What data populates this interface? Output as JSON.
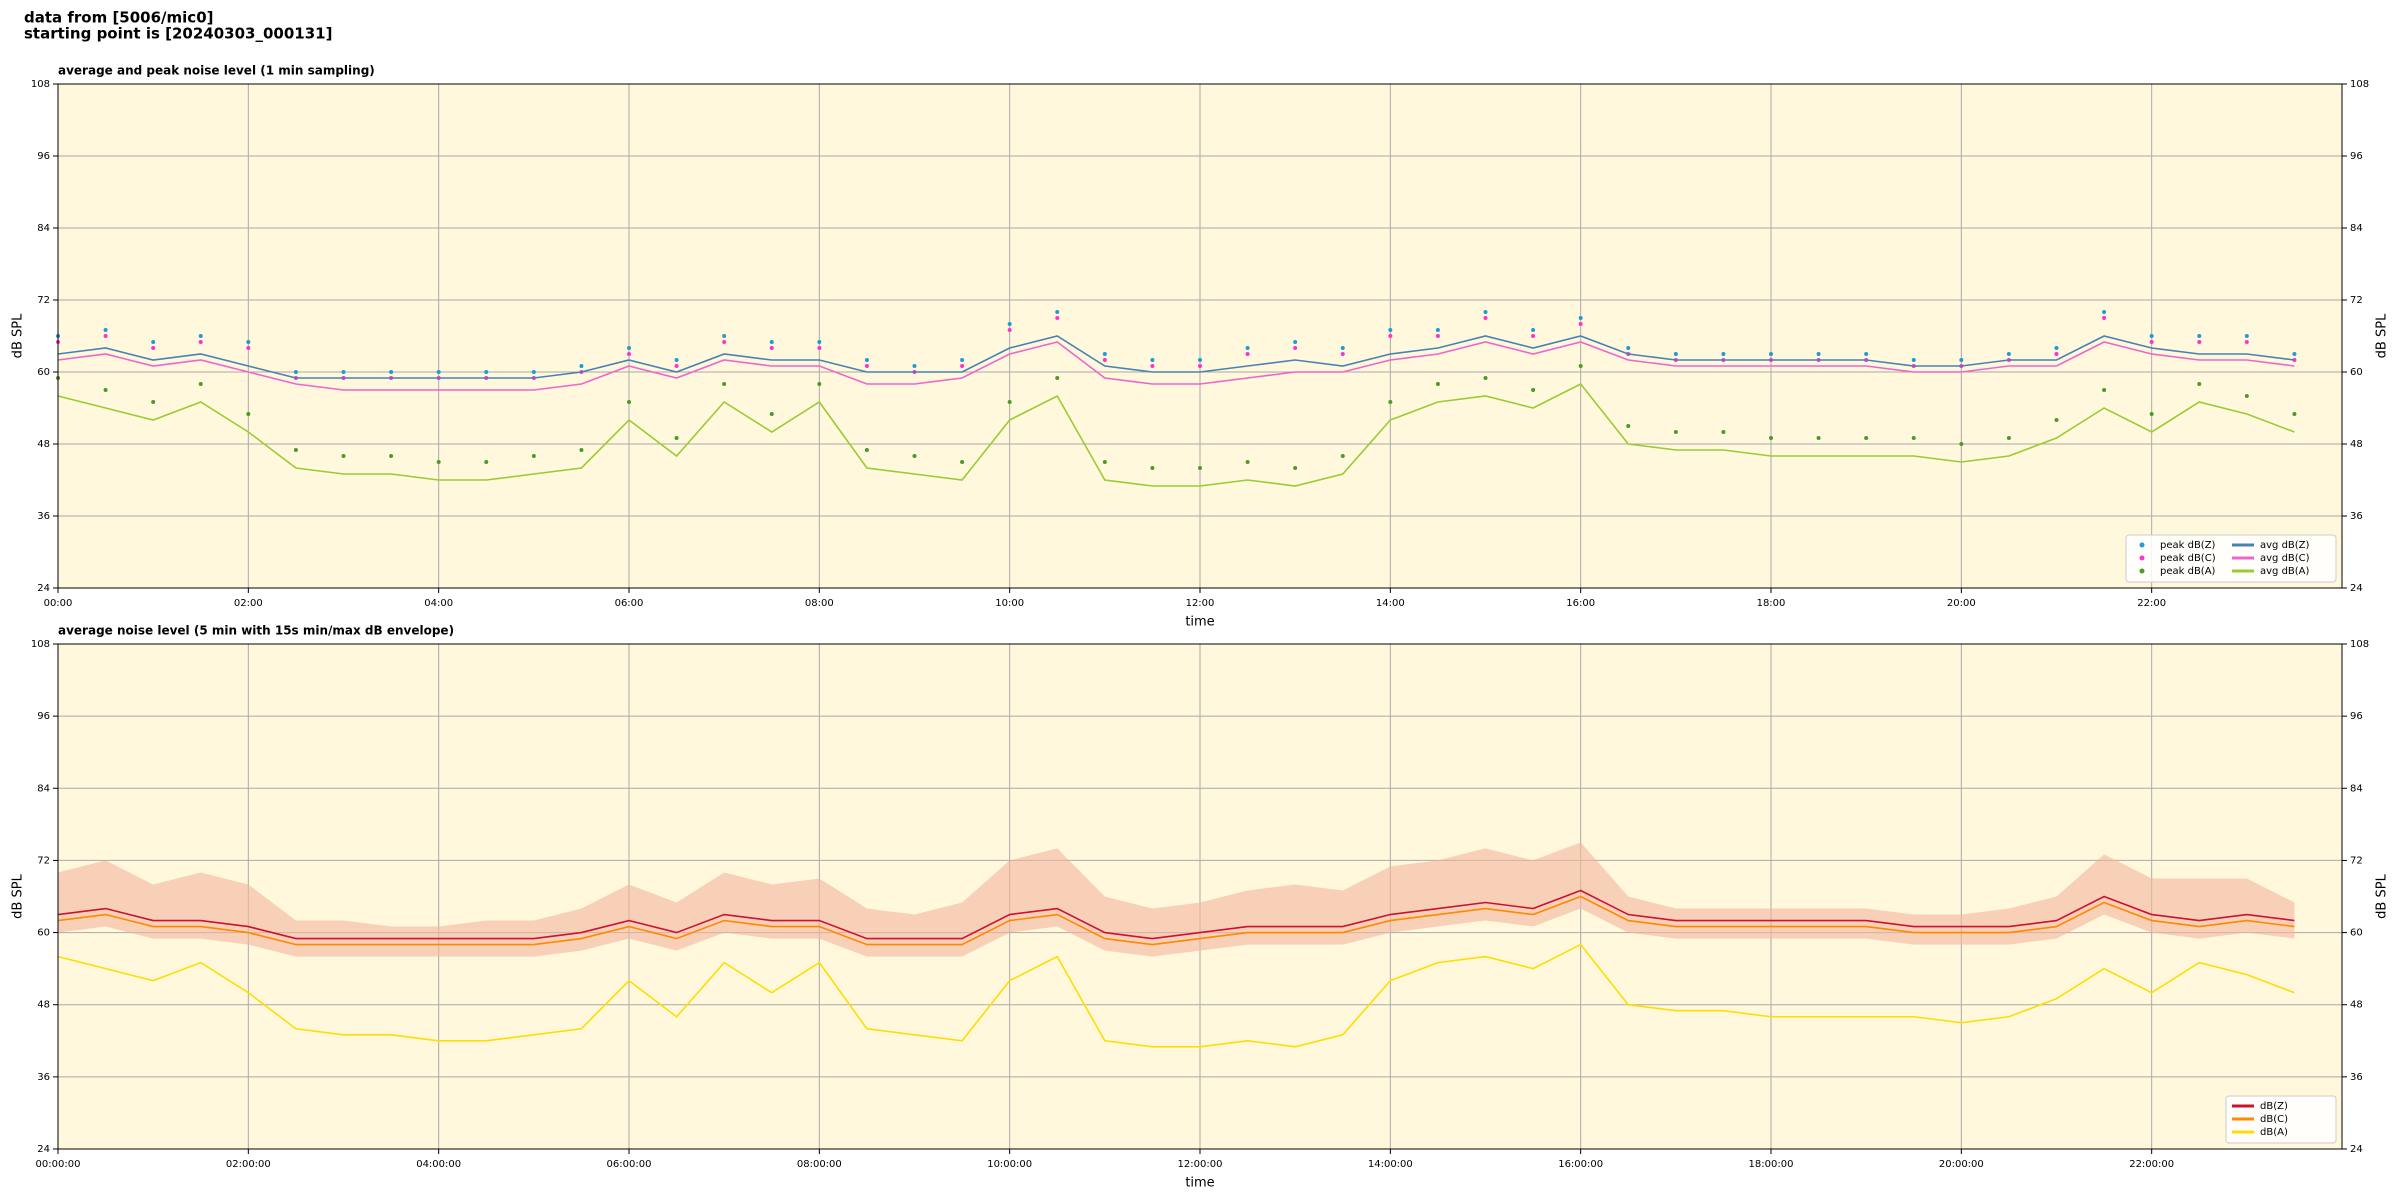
{
  "header": {
    "lines": [
      "data from [5006/mic0]",
      "starting point is [20240303_000131]"
    ]
  },
  "chart_data": [
    {
      "type": "line",
      "title": "average and peak noise level (1 min sampling)",
      "x_label": "time",
      "y_label": "dB SPL",
      "xlim": [
        0,
        24
      ],
      "xticks": [
        {
          "value": 0,
          "label": "00:00"
        },
        {
          "value": 2,
          "label": "02:00"
        },
        {
          "value": 4,
          "label": "04:00"
        },
        {
          "value": 6,
          "label": "06:00"
        },
        {
          "value": 8,
          "label": "08:00"
        },
        {
          "value": 10,
          "label": "10:00"
        },
        {
          "value": 12,
          "label": "12:00"
        },
        {
          "value": 14,
          "label": "14:00"
        },
        {
          "value": 16,
          "label": "16:00"
        },
        {
          "value": 18,
          "label": "18:00"
        },
        {
          "value": 20,
          "label": "20:00"
        },
        {
          "value": 22,
          "label": "22:00"
        }
      ],
      "ylim": [
        24,
        108
      ],
      "yticks": [
        24,
        36,
        48,
        60,
        72,
        84,
        96,
        108
      ],
      "y2lim": [
        24,
        108
      ],
      "y2ticks": [
        24,
        36,
        48,
        60,
        72,
        84,
        96,
        108
      ],
      "grid": true,
      "legend": "lower right",
      "legend_columns": 2,
      "background": "#fff8dc",
      "x": [
        0,
        0.5,
        1,
        1.5,
        2,
        2.5,
        3,
        3.5,
        4,
        4.5,
        5,
        5.5,
        6,
        6.5,
        7,
        7.5,
        8,
        8.5,
        9,
        9.5,
        10,
        10.5,
        11,
        11.5,
        12,
        12.5,
        13,
        13.5,
        14,
        14.5,
        15,
        15.5,
        16,
        16.5,
        17,
        17.5,
        18,
        18.5,
        19,
        19.5,
        20,
        20.5,
        21,
        21.5,
        22,
        22.5,
        23,
        23.5
      ],
      "series": [
        {
          "name": "peak dB(Z)",
          "type": "scatter",
          "color": "#1f9bd7",
          "values": [
            66,
            67,
            65,
            66,
            65,
            60,
            60,
            60,
            60,
            60,
            60,
            61,
            64,
            62,
            66,
            65,
            65,
            62,
            61,
            62,
            68,
            70,
            63,
            62,
            62,
            64,
            65,
            64,
            67,
            67,
            70,
            67,
            69,
            64,
            63,
            63,
            63,
            63,
            63,
            62,
            62,
            63,
            64,
            70,
            66,
            66,
            66,
            63
          ]
        },
        {
          "name": "peak dB(C)",
          "type": "scatter",
          "color": "#ff33cc",
          "values": [
            65,
            66,
            64,
            65,
            64,
            59,
            59,
            59,
            59,
            59,
            59,
            60,
            63,
            61,
            65,
            64,
            64,
            61,
            60,
            61,
            67,
            69,
            62,
            61,
            61,
            63,
            64,
            63,
            66,
            66,
            69,
            66,
            68,
            63,
            62,
            62,
            62,
            62,
            62,
            61,
            61,
            62,
            63,
            69,
            65,
            65,
            65,
            62
          ]
        },
        {
          "name": "peak dB(A)",
          "type": "scatter",
          "color": "#4c9a2a",
          "values": [
            59,
            57,
            55,
            58,
            53,
            47,
            46,
            46,
            45,
            45,
            46,
            47,
            55,
            49,
            58,
            53,
            58,
            47,
            46,
            45,
            55,
            59,
            45,
            44,
            44,
            45,
            44,
            46,
            55,
            58,
            59,
            57,
            61,
            51,
            50,
            50,
            49,
            49,
            49,
            49,
            48,
            49,
            52,
            57,
            53,
            58,
            56,
            53
          ]
        },
        {
          "name": "avg dB(Z)",
          "type": "line",
          "color": "#4682b4",
          "values": [
            63,
            64,
            62,
            63,
            61,
            59,
            59,
            59,
            59,
            59,
            59,
            60,
            62,
            60,
            63,
            62,
            62,
            60,
            60,
            60,
            64,
            66,
            61,
            60,
            60,
            61,
            62,
            61,
            63,
            64,
            66,
            64,
            66,
            63,
            62,
            62,
            62,
            62,
            62,
            61,
            61,
            62,
            62,
            66,
            64,
            63,
            63,
            62
          ]
        },
        {
          "name": "avg dB(C)",
          "type": "line",
          "color": "#ee66cc",
          "values": [
            62,
            63,
            61,
            62,
            60,
            58,
            57,
            57,
            57,
            57,
            57,
            58,
            61,
            59,
            62,
            61,
            61,
            58,
            58,
            59,
            63,
            65,
            59,
            58,
            58,
            59,
            60,
            60,
            62,
            63,
            65,
            63,
            65,
            62,
            61,
            61,
            61,
            61,
            61,
            60,
            60,
            61,
            61,
            65,
            63,
            62,
            62,
            61
          ]
        },
        {
          "name": "avg dB(A)",
          "type": "line",
          "color": "#99cc33",
          "values": [
            56,
            54,
            52,
            55,
            50,
            44,
            43,
            43,
            42,
            42,
            43,
            44,
            52,
            46,
            55,
            50,
            55,
            44,
            43,
            42,
            52,
            56,
            42,
            41,
            41,
            42,
            41,
            43,
            52,
            55,
            56,
            54,
            58,
            48,
            47,
            47,
            46,
            46,
            46,
            46,
            45,
            46,
            49,
            54,
            50,
            55,
            53,
            50
          ]
        }
      ]
    },
    {
      "type": "line",
      "title": "average noise level (5 min with 15s min/max dB envelope)",
      "x_label": "time",
      "y_label": "dB SPL",
      "xlim": [
        0,
        24
      ],
      "xticks": [
        {
          "value": 0,
          "label": "00:00:00"
        },
        {
          "value": 2,
          "label": "02:00:00"
        },
        {
          "value": 4,
          "label": "04:00:00"
        },
        {
          "value": 6,
          "label": "06:00:00"
        },
        {
          "value": 8,
          "label": "08:00:00"
        },
        {
          "value": 10,
          "label": "10:00:00"
        },
        {
          "value": 12,
          "label": "12:00:00"
        },
        {
          "value": 14,
          "label": "14:00:00"
        },
        {
          "value": 16,
          "label": "16:00:00"
        },
        {
          "value": 18,
          "label": "18:00:00"
        },
        {
          "value": 20,
          "label": "20:00:00"
        },
        {
          "value": 22,
          "label": "22:00:00"
        }
      ],
      "ylim": [
        24,
        108
      ],
      "yticks": [
        24,
        36,
        48,
        60,
        72,
        84,
        96,
        108
      ],
      "y2lim": [
        24,
        108
      ],
      "y2ticks": [
        24,
        36,
        48,
        60,
        72,
        84,
        96,
        108
      ],
      "grid": true,
      "legend": "lower right",
      "legend_columns": 1,
      "background": "#fff8dc",
      "x": [
        0,
        0.5,
        1,
        1.5,
        2,
        2.5,
        3,
        3.5,
        4,
        4.5,
        5,
        5.5,
        6,
        6.5,
        7,
        7.5,
        8,
        8.5,
        9,
        9.5,
        10,
        10.5,
        11,
        11.5,
        12,
        12.5,
        13,
        13.5,
        14,
        14.5,
        15,
        15.5,
        16,
        16.5,
        17,
        17.5,
        18,
        18.5,
        19,
        19.5,
        20,
        20.5,
        21,
        21.5,
        22,
        22.5,
        23,
        23.5
      ],
      "envelope": {
        "color": "#f4b6a0",
        "max": [
          70,
          72,
          68,
          70,
          68,
          62,
          62,
          61,
          61,
          62,
          62,
          64,
          68,
          65,
          70,
          68,
          69,
          64,
          63,
          65,
          72,
          74,
          66,
          64,
          65,
          67,
          68,
          67,
          71,
          72,
          74,
          72,
          75,
          66,
          64,
          64,
          64,
          64,
          64,
          63,
          63,
          64,
          66,
          73,
          69,
          69,
          69,
          65
        ],
        "min": [
          60,
          61,
          59,
          59,
          58,
          56,
          56,
          56,
          56,
          56,
          56,
          57,
          59,
          57,
          60,
          59,
          59,
          56,
          56,
          56,
          60,
          61,
          57,
          56,
          57,
          58,
          58,
          58,
          60,
          61,
          62,
          61,
          64,
          60,
          59,
          59,
          59,
          59,
          59,
          58,
          58,
          58,
          59,
          63,
          60,
          59,
          60,
          59
        ]
      },
      "series": [
        {
          "name": "dB(Z)",
          "type": "line",
          "color": "#cc1133",
          "values": [
            63,
            64,
            62,
            62,
            61,
            59,
            59,
            59,
            59,
            59,
            59,
            60,
            62,
            60,
            63,
            62,
            62,
            59,
            59,
            59,
            63,
            64,
            60,
            59,
            60,
            61,
            61,
            61,
            63,
            64,
            65,
            64,
            67,
            63,
            62,
            62,
            62,
            62,
            62,
            61,
            61,
            61,
            62,
            66,
            63,
            62,
            63,
            62
          ]
        },
        {
          "name": "dB(C)",
          "type": "line",
          "color": "#ff8800",
          "values": [
            62,
            63,
            61,
            61,
            60,
            58,
            58,
            58,
            58,
            58,
            58,
            59,
            61,
            59,
            62,
            61,
            61,
            58,
            58,
            58,
            62,
            63,
            59,
            58,
            59,
            60,
            60,
            60,
            62,
            63,
            64,
            63,
            66,
            62,
            61,
            61,
            61,
            61,
            61,
            60,
            60,
            60,
            61,
            65,
            62,
            61,
            62,
            61
          ]
        },
        {
          "name": "dB(A)",
          "type": "line",
          "color": "#ffdd00",
          "values": [
            56,
            54,
            52,
            55,
            50,
            44,
            43,
            43,
            42,
            42,
            43,
            44,
            52,
            46,
            55,
            50,
            55,
            44,
            43,
            42,
            52,
            56,
            42,
            41,
            41,
            42,
            41,
            43,
            52,
            55,
            56,
            54,
            58,
            48,
            47,
            47,
            46,
            46,
            46,
            46,
            45,
            46,
            49,
            54,
            50,
            55,
            53,
            50
          ]
        }
      ]
    }
  ]
}
